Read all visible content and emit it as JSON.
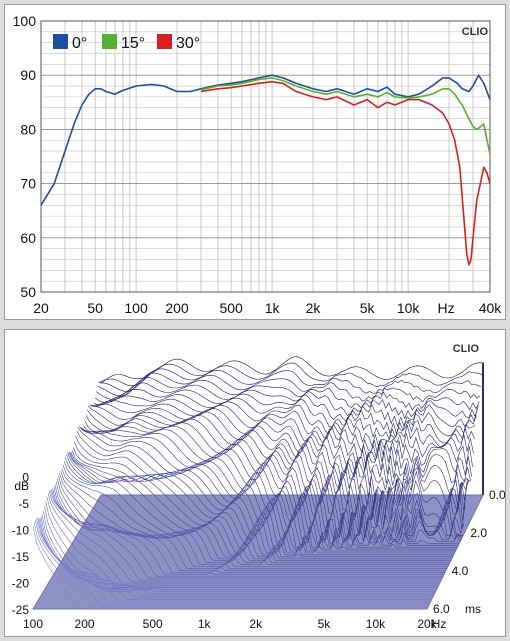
{
  "chart_data": [
    {
      "type": "line",
      "watermark": "CLIO",
      "x_scale": "log",
      "xlim": [
        20,
        40000
      ],
      "ylim": [
        50,
        100
      ],
      "y_ticks": [
        "50",
        "60",
        "70",
        "80",
        "90",
        "100"
      ],
      "x_ticks": [
        {
          "label": "20",
          "value": 20
        },
        {
          "label": "50",
          "value": 50
        },
        {
          "label": "100",
          "value": 100
        },
        {
          "label": "200",
          "value": 200
        },
        {
          "label": "500",
          "value": 500
        },
        {
          "label": "1k",
          "value": 1000
        },
        {
          "label": "2k",
          "value": 2000
        },
        {
          "label": "5k",
          "value": 5000
        },
        {
          "label": "10k",
          "value": 10000
        },
        {
          "label": "Hz",
          "value": 19000
        },
        {
          "label": "40k",
          "value": 40000
        }
      ],
      "grid": true,
      "legend_position": "top-left",
      "series": [
        {
          "name": "0°",
          "color": "#1f4e9c",
          "points": [
            [
              20,
              66
            ],
            [
              25,
              70
            ],
            [
              30,
              76
            ],
            [
              35,
              81
            ],
            [
              40,
              84.5
            ],
            [
              45,
              86.5
            ],
            [
              50,
              87.5
            ],
            [
              55,
              87.5
            ],
            [
              60,
              87
            ],
            [
              70,
              86.5
            ],
            [
              80,
              87.2
            ],
            [
              100,
              88
            ],
            [
              130,
              88.3
            ],
            [
              160,
              88
            ],
            [
              200,
              87
            ],
            [
              250,
              87
            ],
            [
              300,
              87.5
            ],
            [
              400,
              88.2
            ],
            [
              500,
              88.5
            ],
            [
              600,
              88.8
            ],
            [
              800,
              89.5
            ],
            [
              1000,
              90
            ],
            [
              1200,
              89.5
            ],
            [
              1500,
              88.5
            ],
            [
              2000,
              87.5
            ],
            [
              2500,
              87
            ],
            [
              3000,
              87.5
            ],
            [
              4000,
              86.5
            ],
            [
              5000,
              87.5
            ],
            [
              6000,
              87
            ],
            [
              7000,
              87.8
            ],
            [
              8000,
              86.5
            ],
            [
              10000,
              86
            ],
            [
              12000,
              86.5
            ],
            [
              15000,
              88
            ],
            [
              18000,
              89.5
            ],
            [
              20000,
              89.5
            ],
            [
              23000,
              88.5
            ],
            [
              25000,
              87.5
            ],
            [
              28000,
              87
            ],
            [
              30000,
              88
            ],
            [
              33000,
              90
            ],
            [
              36000,
              88.5
            ],
            [
              40000,
              85.5
            ]
          ]
        },
        {
          "name": "15°",
          "color": "#58b033",
          "points": [
            [
              300,
              87.3
            ],
            [
              400,
              88
            ],
            [
              500,
              88.2
            ],
            [
              600,
              88.5
            ],
            [
              800,
              89.2
            ],
            [
              1000,
              89.5
            ],
            [
              1200,
              89
            ],
            [
              1500,
              88
            ],
            [
              2000,
              87
            ],
            [
              2500,
              86.5
            ],
            [
              3000,
              87
            ],
            [
              4000,
              86
            ],
            [
              5000,
              86.5
            ],
            [
              6000,
              86
            ],
            [
              7000,
              86.8
            ],
            [
              8000,
              86
            ],
            [
              10000,
              85.8
            ],
            [
              12000,
              86
            ],
            [
              15000,
              86.5
            ],
            [
              18000,
              87.5
            ],
            [
              20000,
              87.5
            ],
            [
              22000,
              86.5
            ],
            [
              25000,
              84.5
            ],
            [
              28000,
              82
            ],
            [
              30000,
              80.5
            ],
            [
              32000,
              80
            ],
            [
              34000,
              80.5
            ],
            [
              36000,
              81
            ],
            [
              38000,
              78
            ],
            [
              40000,
              75.5
            ]
          ]
        },
        {
          "name": "30°",
          "color": "#d8211f",
          "points": [
            [
              300,
              87
            ],
            [
              400,
              87.5
            ],
            [
              500,
              87.7
            ],
            [
              600,
              88
            ],
            [
              800,
              88.5
            ],
            [
              1000,
              88.8
            ],
            [
              1200,
              88.5
            ],
            [
              1500,
              87
            ],
            [
              2000,
              86
            ],
            [
              2500,
              85.5
            ],
            [
              3000,
              86
            ],
            [
              4000,
              84.5
            ],
            [
              5000,
              85.5
            ],
            [
              6000,
              84
            ],
            [
              7000,
              85
            ],
            [
              8000,
              84.5
            ],
            [
              10000,
              85.5
            ],
            [
              12000,
              85.5
            ],
            [
              15000,
              84.5
            ],
            [
              18000,
              83
            ],
            [
              20000,
              81
            ],
            [
              22000,
              78
            ],
            [
              24000,
              73
            ],
            [
              26000,
              62
            ],
            [
              27000,
              57
            ],
            [
              28000,
              55
            ],
            [
              29000,
              56
            ],
            [
              30000,
              60
            ],
            [
              32000,
              67
            ],
            [
              34000,
              70
            ],
            [
              36000,
              73
            ],
            [
              38000,
              72
            ],
            [
              40000,
              70
            ]
          ]
        }
      ]
    },
    {
      "type": "waterfall",
      "watermark": "CLIO",
      "x_scale": "log",
      "xlim": [
        100,
        20000
      ],
      "x_unit": "Hz",
      "x_ticks": [
        {
          "label": "100",
          "value": 100
        },
        {
          "label": "200",
          "value": 200
        },
        {
          "label": "500",
          "value": 500
        },
        {
          "label": "1k",
          "value": 1000
        },
        {
          "label": "2k",
          "value": 2000
        },
        {
          "label": "5k",
          "value": 5000
        },
        {
          "label": "10k",
          "value": 10000
        },
        {
          "label": "20k",
          "value": 20000
        }
      ],
      "z_label": "dB",
      "z_ticks": [
        "0",
        "-5",
        "-10",
        "-15",
        "-20",
        "-25"
      ],
      "zlim": [
        -25,
        0
      ],
      "t_unit": "ms",
      "t_ticks": [
        "0.0",
        "2.0",
        "4.0",
        "6.0"
      ],
      "tlim": [
        0,
        6
      ],
      "slice_count": 60,
      "envelope_db": [
        [
          100,
          -4
        ],
        [
          150,
          -3
        ],
        [
          200,
          -1
        ],
        [
          300,
          -0.5
        ],
        [
          500,
          -0.5
        ],
        [
          700,
          -1
        ],
        [
          1000,
          -1
        ],
        [
          1500,
          0
        ],
        [
          2000,
          -1
        ],
        [
          3000,
          -2
        ],
        [
          5000,
          -2
        ],
        [
          7000,
          -2
        ],
        [
          10000,
          -1.5
        ],
        [
          15000,
          -2
        ],
        [
          20000,
          -1
        ]
      ]
    }
  ]
}
